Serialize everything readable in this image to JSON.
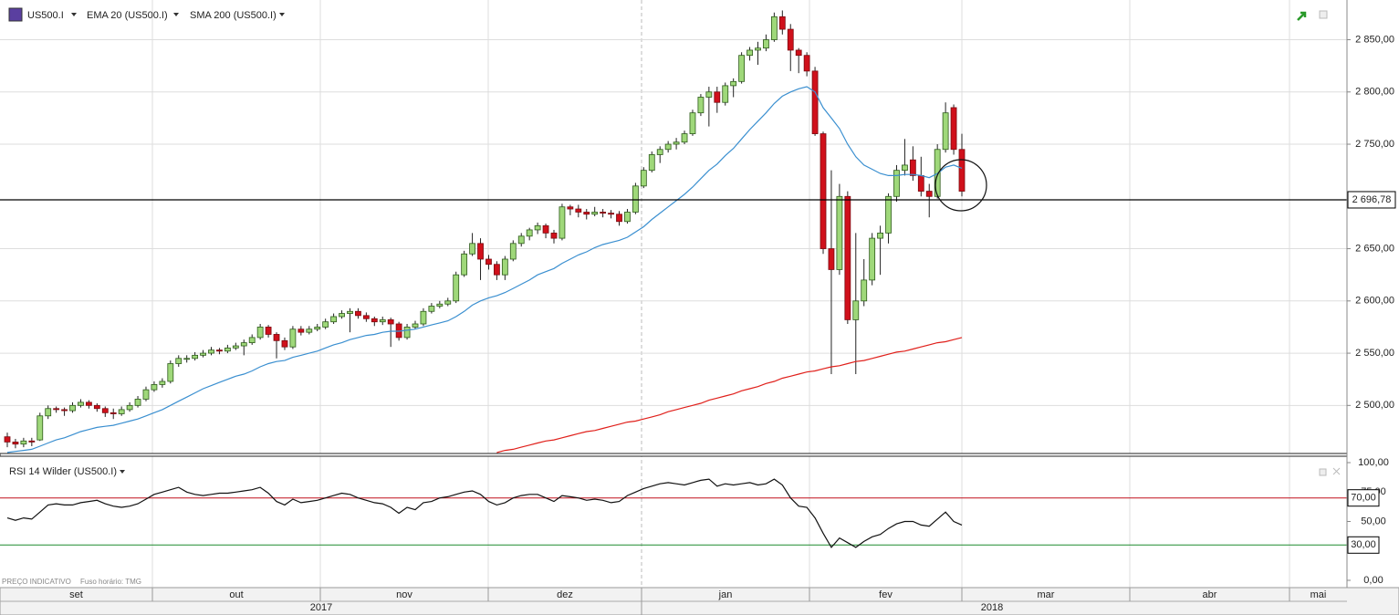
{
  "chart_data": {
    "type": "candlestick",
    "title": "US500.I",
    "up_color": "#9fd87a",
    "down_color": "#d0101b",
    "ohlc": [
      [
        2470,
        2474,
        2460,
        2465
      ],
      [
        2465,
        2468,
        2459,
        2463
      ],
      [
        2463,
        2469,
        2460,
        2466
      ],
      [
        2466,
        2469,
        2461,
        2465
      ],
      [
        2467,
        2493,
        2466,
        2490
      ],
      [
        2490,
        2500,
        2487,
        2497
      ],
      [
        2497,
        2499,
        2493,
        2496
      ],
      [
        2496,
        2498,
        2490,
        2495
      ],
      [
        2495,
        2503,
        2493,
        2500
      ],
      [
        2500,
        2506,
        2498,
        2503
      ],
      [
        2503,
        2505,
        2497,
        2500
      ],
      [
        2500,
        2502,
        2494,
        2497
      ],
      [
        2497,
        2499,
        2489,
        2493
      ],
      [
        2493,
        2497,
        2487,
        2492
      ],
      [
        2492,
        2499,
        2490,
        2496
      ],
      [
        2496,
        2503,
        2494,
        2500
      ],
      [
        2500,
        2509,
        2498,
        2506
      ],
      [
        2506,
        2518,
        2504,
        2515
      ],
      [
        2515,
        2523,
        2513,
        2520
      ],
      [
        2520,
        2526,
        2517,
        2523
      ],
      [
        2523,
        2543,
        2521,
        2540
      ],
      [
        2540,
        2548,
        2537,
        2545
      ],
      [
        2545,
        2548,
        2541,
        2545
      ],
      [
        2545,
        2551,
        2543,
        2548
      ],
      [
        2548,
        2553,
        2546,
        2550
      ],
      [
        2550,
        2556,
        2548,
        2553
      ],
      [
        2553,
        2555,
        2549,
        2552
      ],
      [
        2552,
        2558,
        2550,
        2555
      ],
      [
        2555,
        2560,
        2553,
        2557
      ],
      [
        2557,
        2563,
        2548,
        2560
      ],
      [
        2560,
        2568,
        2558,
        2565
      ],
      [
        2565,
        2578,
        2563,
        2575
      ],
      [
        2575,
        2577,
        2565,
        2568
      ],
      [
        2568,
        2570,
        2545,
        2562
      ],
      [
        2562,
        2565,
        2553,
        2556
      ],
      [
        2556,
        2576,
        2554,
        2573
      ],
      [
        2573,
        2576,
        2567,
        2570
      ],
      [
        2570,
        2576,
        2568,
        2573
      ],
      [
        2573,
        2578,
        2571,
        2575
      ],
      [
        2575,
        2583,
        2573,
        2580
      ],
      [
        2580,
        2588,
        2578,
        2585
      ],
      [
        2585,
        2591,
        2583,
        2588
      ],
      [
        2588,
        2593,
        2570,
        2590
      ],
      [
        2590,
        2593,
        2583,
        2586
      ],
      [
        2586,
        2589,
        2580,
        2583
      ],
      [
        2583,
        2585,
        2576,
        2580
      ],
      [
        2580,
        2585,
        2577,
        2582
      ],
      [
        2582,
        2584,
        2556,
        2578
      ],
      [
        2578,
        2580,
        2562,
        2565
      ],
      [
        2565,
        2578,
        2563,
        2575
      ],
      [
        2575,
        2581,
        2573,
        2578
      ],
      [
        2578,
        2593,
        2576,
        2590
      ],
      [
        2590,
        2598,
        2588,
        2595
      ],
      [
        2595,
        2600,
        2593,
        2597
      ],
      [
        2597,
        2603,
        2595,
        2600
      ],
      [
        2600,
        2628,
        2598,
        2625
      ],
      [
        2625,
        2648,
        2623,
        2645
      ],
      [
        2645,
        2665,
        2643,
        2655
      ],
      [
        2655,
        2660,
        2620,
        2640
      ],
      [
        2640,
        2644,
        2630,
        2635
      ],
      [
        2635,
        2638,
        2620,
        2625
      ],
      [
        2625,
        2643,
        2620,
        2640
      ],
      [
        2640,
        2658,
        2638,
        2655
      ],
      [
        2655,
        2665,
        2652,
        2662
      ],
      [
        2662,
        2670,
        2658,
        2668
      ],
      [
        2668,
        2675,
        2664,
        2672
      ],
      [
        2672,
        2674,
        2660,
        2665
      ],
      [
        2665,
        2668,
        2655,
        2660
      ],
      [
        2660,
        2693,
        2658,
        2690
      ],
      [
        2690,
        2692,
        2682,
        2688
      ],
      [
        2688,
        2692,
        2680,
        2685
      ],
      [
        2685,
        2688,
        2678,
        2683
      ],
      [
        2683,
        2690,
        2681,
        2685
      ],
      [
        2685,
        2688,
        2680,
        2684
      ],
      [
        2684,
        2687,
        2679,
        2683
      ],
      [
        2683,
        2686,
        2672,
        2676
      ],
      [
        2676,
        2688,
        2674,
        2685
      ],
      [
        2685,
        2713,
        2683,
        2710
      ],
      [
        2710,
        2728,
        2708,
        2725
      ],
      [
        2725,
        2743,
        2723,
        2740
      ],
      [
        2740,
        2748,
        2732,
        2745
      ],
      [
        2745,
        2753,
        2742,
        2750
      ],
      [
        2750,
        2756,
        2745,
        2752
      ],
      [
        2752,
        2763,
        2750,
        2760
      ],
      [
        2760,
        2783,
        2758,
        2780
      ],
      [
        2780,
        2798,
        2777,
        2795
      ],
      [
        2795,
        2805,
        2767,
        2800
      ],
      [
        2800,
        2805,
        2780,
        2790
      ],
      [
        2790,
        2809,
        2787,
        2806
      ],
      [
        2806,
        2813,
        2795,
        2810
      ],
      [
        2810,
        2838,
        2808,
        2835
      ],
      [
        2835,
        2843,
        2830,
        2840
      ],
      [
        2840,
        2848,
        2826,
        2842
      ],
      [
        2842,
        2855,
        2839,
        2850
      ],
      [
        2850,
        2876,
        2848,
        2872
      ],
      [
        2872,
        2878,
        2855,
        2860
      ],
      [
        2860,
        2865,
        2820,
        2840
      ],
      [
        2840,
        2842,
        2818,
        2835
      ],
      [
        2835,
        2838,
        2815,
        2820
      ],
      [
        2820,
        2824,
        2758,
        2760
      ],
      [
        2760,
        2762,
        2645,
        2650
      ],
      [
        2650,
        2725,
        2530,
        2630
      ],
      [
        2630,
        2712,
        2625,
        2700
      ],
      [
        2700,
        2705,
        2578,
        2582
      ],
      [
        2582,
        2665,
        2530,
        2600
      ],
      [
        2600,
        2640,
        2595,
        2620
      ],
      [
        2620,
        2665,
        2615,
        2660
      ],
      [
        2660,
        2672,
        2625,
        2665
      ],
      [
        2665,
        2703,
        2655,
        2700
      ],
      [
        2700,
        2730,
        2695,
        2725
      ],
      [
        2725,
        2755,
        2720,
        2730
      ],
      [
        2735,
        2748,
        2715,
        2720
      ],
      [
        2720,
        2738,
        2700,
        2705
      ],
      [
        2705,
        2712,
        2680,
        2700
      ],
      [
        2700,
        2750,
        2698,
        2745
      ],
      [
        2745,
        2790,
        2742,
        2780
      ],
      [
        2785,
        2788,
        2740,
        2745
      ],
      [
        2745,
        2760,
        2700,
        2705
      ]
    ],
    "series": [
      {
        "name": "EMA 20 (US500.I)",
        "color": "#3a8fd0",
        "values": [
          2455,
          2456,
          2457,
          2458,
          2461,
          2464,
          2467,
          2469,
          2472,
          2475,
          2477,
          2479,
          2480,
          2481,
          2483,
          2485,
          2487,
          2490,
          2493,
          2496,
          2500,
          2504,
          2508,
          2512,
          2516,
          2519,
          2522,
          2525,
          2528,
          2530,
          2533,
          2537,
          2540,
          2542,
          2543,
          2546,
          2548,
          2550,
          2552,
          2555,
          2558,
          2560,
          2563,
          2565,
          2567,
          2568,
          2570,
          2571,
          2571,
          2572,
          2573,
          2575,
          2577,
          2579,
          2581,
          2585,
          2590,
          2596,
          2600,
          2603,
          2605,
          2608,
          2612,
          2616,
          2620,
          2625,
          2628,
          2631,
          2636,
          2640,
          2644,
          2647,
          2651,
          2654,
          2656,
          2658,
          2661,
          2666,
          2671,
          2678,
          2684,
          2690,
          2696,
          2702,
          2709,
          2717,
          2725,
          2731,
          2739,
          2746,
          2755,
          2764,
          2772,
          2780,
          2789,
          2796,
          2800,
          2803,
          2805,
          2800,
          2785,
          2775,
          2765,
          2750,
          2738,
          2730,
          2726,
          2722,
          2720,
          2720,
          2721,
          2721,
          2720,
          2718,
          2722,
          2728,
          2730,
          2727
        ]
      },
      {
        "name": "SMA 200 (US500.I)",
        "color": "#e0201b",
        "values": [
          null,
          null,
          null,
          null,
          null,
          null,
          null,
          null,
          null,
          null,
          null,
          null,
          null,
          null,
          null,
          null,
          null,
          null,
          null,
          null,
          null,
          null,
          null,
          null,
          null,
          null,
          null,
          null,
          null,
          null,
          null,
          null,
          null,
          null,
          null,
          null,
          null,
          null,
          null,
          null,
          null,
          null,
          null,
          null,
          null,
          null,
          null,
          null,
          null,
          null,
          null,
          null,
          null,
          null,
          null,
          null,
          null,
          null,
          null,
          null,
          2455,
          2457,
          2458,
          2460,
          2462,
          2464,
          2466,
          2467,
          2469,
          2471,
          2473,
          2475,
          2476,
          2478,
          2480,
          2482,
          2484,
          2485,
          2487,
          2489,
          2491,
          2494,
          2496,
          2498,
          2500,
          2502,
          2505,
          2507,
          2509,
          2511,
          2514,
          2516,
          2518,
          2521,
          2523,
          2526,
          2528,
          2530,
          2532,
          2533,
          2535,
          2537,
          2538,
          2540,
          2542,
          2543,
          2545,
          2547,
          2549,
          2551,
          2552,
          2554,
          2556,
          2558,
          2560,
          2561,
          2563,
          2565
        ]
      }
    ],
    "ylim": [
      2454,
      2888
    ],
    "yticks": [
      {
        "value": 2500,
        "label": "2 500,00"
      },
      {
        "value": 2550,
        "label": "2 550,00"
      },
      {
        "value": 2600,
        "label": "2 600,00"
      },
      {
        "value": 2650,
        "label": "2 650,00"
      },
      {
        "value": 2750,
        "label": "2 750,00"
      },
      {
        "value": 2800,
        "label": "2 800,00"
      },
      {
        "value": 2850,
        "label": "2 850,00"
      }
    ],
    "grid": true,
    "last_price": {
      "value": 2696.78,
      "label": "2 696,78"
    },
    "months": [
      "set",
      "out",
      "nov",
      "dez",
      "jan",
      "fev",
      "mar",
      "abr",
      "mai"
    ],
    "years": [
      "2017",
      "2018"
    ],
    "rsi": {
      "name": "RSI 14 Wilder (US500.I)",
      "color": "#111",
      "ylim": [
        0,
        100
      ],
      "yticks": [
        {
          "value": 0,
          "label": "0,00"
        },
        {
          "value": 50,
          "label": "50,00"
        },
        {
          "value": 75,
          "label": "75,00"
        },
        {
          "value": 100,
          "label": "100,00"
        }
      ],
      "levels": [
        {
          "value": 70,
          "label": "70,00",
          "color": "#c0101b"
        },
        {
          "value": 30,
          "label": "30,00",
          "color": "#1e8a2e"
        }
      ],
      "values": [
        53,
        51,
        53,
        52,
        58,
        64,
        65,
        64,
        64,
        66,
        67,
        68,
        65,
        63,
        62,
        63,
        65,
        69,
        73,
        75,
        77,
        79,
        75,
        73,
        72,
        73,
        74,
        74,
        75,
        76,
        77,
        79,
        74,
        67,
        64,
        69,
        66,
        67,
        68,
        70,
        72,
        74,
        73,
        70,
        68,
        66,
        65,
        62,
        57,
        62,
        60,
        66,
        67,
        70,
        71,
        73,
        75,
        76,
        73,
        67,
        64,
        66,
        70,
        72,
        73,
        73,
        70,
        67,
        72,
        71,
        70,
        68,
        69,
        68,
        66,
        67,
        72,
        75,
        78,
        80,
        82,
        83,
        82,
        81,
        83,
        85,
        86,
        80,
        82,
        81,
        82,
        83,
        81,
        82,
        86,
        81,
        70,
        63,
        62,
        53,
        40,
        28,
        36,
        32,
        28,
        33,
        37,
        39,
        44,
        48,
        50,
        50,
        47,
        46,
        52,
        58,
        50,
        47
      ]
    },
    "footer": "PREÇO INDICATIVO",
    "timezone": "Fuso horário: TMG"
  }
}
